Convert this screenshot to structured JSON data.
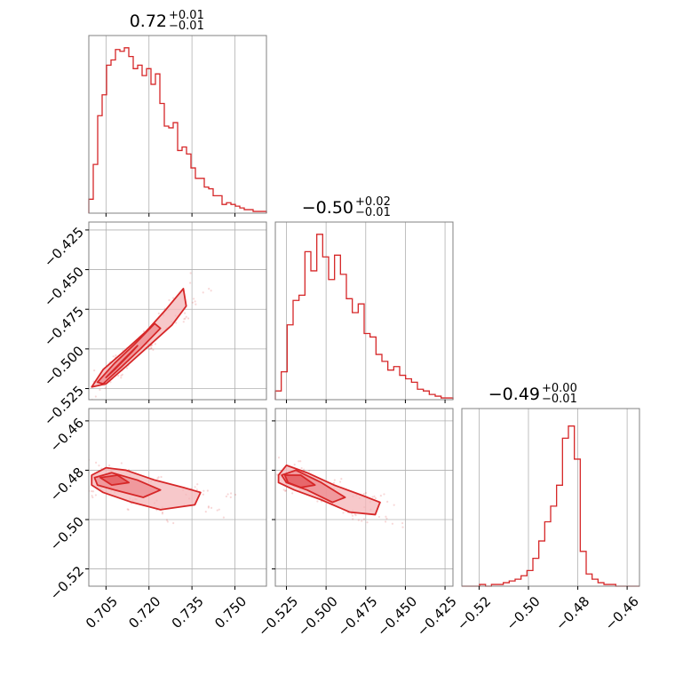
{
  "chart_data": {
    "type": "corner",
    "color": "#d62728",
    "contour_fill": "#f4b6b8",
    "grid": true,
    "parameters": [
      {
        "title_median": "0.72",
        "title_plus": "+0.01",
        "title_minus": "−0.01",
        "range": [
          0.699,
          0.761
        ],
        "ticks": [
          0.705,
          0.72,
          0.735,
          0.75
        ],
        "tick_labels": [
          "0.705",
          "0.720",
          "0.735",
          "0.750"
        ],
        "hist": [
          0.08,
          0.28,
          0.56,
          0.68,
          0.85,
          0.88,
          0.94,
          0.93,
          0.95,
          0.9,
          0.83,
          0.85,
          0.79,
          0.83,
          0.74,
          0.8,
          0.63,
          0.5,
          0.49,
          0.52,
          0.36,
          0.38,
          0.34,
          0.26,
          0.2,
          0.2,
          0.15,
          0.14,
          0.1,
          0.1,
          0.05,
          0.06,
          0.05,
          0.04,
          0.03,
          0.02,
          0.02,
          0.01,
          0.01,
          0.01
        ]
      },
      {
        "title_median": "−0.50",
        "title_plus": "+0.02",
        "title_minus": "−0.01",
        "range": [
          -0.532,
          -0.42
        ],
        "ticks": [
          -0.525,
          -0.5,
          -0.475,
          -0.45,
          -0.425
        ],
        "tick_labels": [
          "−0.525",
          "−0.500",
          "−0.475",
          "−0.450",
          "−0.425"
        ],
        "hist": [
          0.05,
          0.16,
          0.43,
          0.57,
          0.6,
          0.85,
          0.74,
          0.95,
          0.82,
          0.69,
          0.83,
          0.72,
          0.58,
          0.5,
          0.55,
          0.38,
          0.36,
          0.26,
          0.22,
          0.17,
          0.19,
          0.14,
          0.12,
          0.1,
          0.06,
          0.05,
          0.03,
          0.02,
          0.01,
          0.01
        ]
      },
      {
        "title_median": "−0.49",
        "title_plus": "+0.00",
        "title_minus": "−0.01",
        "range": [
          -0.527,
          -0.455
        ],
        "ticks": [
          -0.52,
          -0.5,
          -0.48,
          -0.46
        ],
        "tick_labels": [
          "−0.52",
          "−0.50",
          "−0.48",
          "−0.46"
        ],
        "hist": [
          0.0,
          0.0,
          0.0,
          0.01,
          0.0,
          0.01,
          0.01,
          0.02,
          0.03,
          0.04,
          0.06,
          0.09,
          0.16,
          0.26,
          0.37,
          0.46,
          0.58,
          0.85,
          0.92,
          0.73,
          0.2,
          0.07,
          0.04,
          0.02,
          0.01,
          0.01,
          0.0,
          0.0,
          0.0,
          0.0
        ]
      }
    ],
    "pairs": [
      {
        "row": 1,
        "col": 0,
        "levels": [
          [
            [
              0.7,
              -0.524
            ],
            [
              0.704,
              -0.513
            ],
            [
              0.711,
              -0.502
            ],
            [
              0.719,
              -0.489
            ],
            [
              0.726,
              -0.475
            ],
            [
              0.732,
              -0.462
            ],
            [
              0.733,
              -0.473
            ],
            [
              0.728,
              -0.485
            ],
            [
              0.72,
              -0.498
            ],
            [
              0.712,
              -0.511
            ],
            [
              0.705,
              -0.522
            ]
          ],
          [
            [
              0.702,
              -0.521
            ],
            [
              0.708,
              -0.509
            ],
            [
              0.715,
              -0.497
            ],
            [
              0.722,
              -0.484
            ],
            [
              0.724,
              -0.487
            ],
            [
              0.717,
              -0.5
            ],
            [
              0.71,
              -0.512
            ],
            [
              0.704,
              -0.522
            ]
          ],
          [
            [
              0.705,
              -0.518
            ],
            [
              0.711,
              -0.507
            ],
            [
              0.716,
              -0.498
            ],
            [
              0.714,
              -0.502
            ],
            [
              0.708,
              -0.513
            ]
          ]
        ]
      },
      {
        "row": 2,
        "col": 0,
        "levels": [
          [
            [
              0.7,
              -0.482
            ],
            [
              0.705,
              -0.479
            ],
            [
              0.712,
              -0.48
            ],
            [
              0.722,
              -0.484
            ],
            [
              0.732,
              -0.487
            ],
            [
              0.738,
              -0.489
            ],
            [
              0.736,
              -0.494
            ],
            [
              0.724,
              -0.496
            ],
            [
              0.714,
              -0.493
            ],
            [
              0.704,
              -0.489
            ],
            [
              0.7,
              -0.486
            ]
          ],
          [
            [
              0.701,
              -0.483
            ],
            [
              0.707,
              -0.481
            ],
            [
              0.716,
              -0.484
            ],
            [
              0.724,
              -0.488
            ],
            [
              0.718,
              -0.491
            ],
            [
              0.708,
              -0.488
            ],
            [
              0.702,
              -0.486
            ]
          ],
          [
            [
              0.703,
              -0.483
            ],
            [
              0.709,
              -0.482
            ],
            [
              0.713,
              -0.485
            ],
            [
              0.707,
              -0.486
            ]
          ]
        ]
      },
      {
        "row": 2,
        "col": 1,
        "levels": [
          [
            [
              -0.53,
              -0.482
            ],
            [
              -0.525,
              -0.478
            ],
            [
              -0.512,
              -0.481
            ],
            [
              -0.495,
              -0.486
            ],
            [
              -0.478,
              -0.49
            ],
            [
              -0.466,
              -0.493
            ],
            [
              -0.469,
              -0.498
            ],
            [
              -0.485,
              -0.497
            ],
            [
              -0.503,
              -0.492
            ],
            [
              -0.52,
              -0.488
            ],
            [
              -0.53,
              -0.485
            ]
          ],
          [
            [
              -0.528,
              -0.482
            ],
            [
              -0.519,
              -0.48
            ],
            [
              -0.503,
              -0.485
            ],
            [
              -0.488,
              -0.491
            ],
            [
              -0.496,
              -0.493
            ],
            [
              -0.512,
              -0.488
            ],
            [
              -0.525,
              -0.485
            ]
          ],
          [
            [
              -0.526,
              -0.482
            ],
            [
              -0.516,
              -0.482
            ],
            [
              -0.507,
              -0.486
            ],
            [
              -0.516,
              -0.487
            ],
            [
              -0.524,
              -0.485
            ]
          ]
        ]
      }
    ]
  }
}
